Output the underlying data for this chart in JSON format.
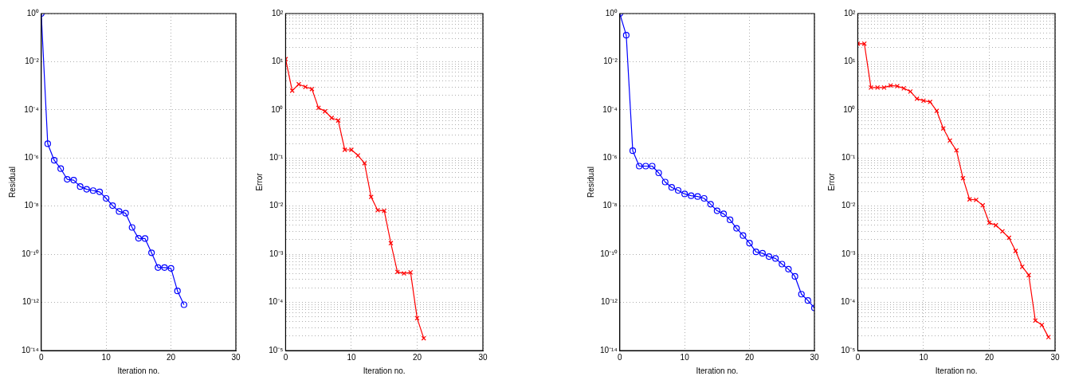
{
  "chart_data": [
    {
      "type": "line",
      "xlabel": "Iteration no.",
      "ylabel": "Residual",
      "marker": "circle",
      "log": "y",
      "grid": true,
      "xlim": [
        0,
        30
      ],
      "xticks": [
        0,
        10,
        20,
        30
      ],
      "ylim": [
        1e-14,
        1
      ],
      "yticks": [
        {
          "value": 1e-14,
          "label": "10⁻¹⁴"
        },
        {
          "value": 1e-12,
          "label": "10⁻¹²"
        },
        {
          "value": 1e-10,
          "label": "10⁻¹⁰"
        },
        {
          "value": 1e-08,
          "label": "10⁻⁸"
        },
        {
          "value": 1e-06,
          "label": "10⁻⁶"
        },
        {
          "value": 0.0001,
          "label": "10⁻⁴"
        },
        {
          "value": 0.01,
          "label": "10⁻²"
        },
        {
          "value": 1,
          "label": "10⁰"
        }
      ],
      "x": [
        0,
        1,
        2,
        3,
        4,
        5,
        6,
        7,
        8,
        9,
        10,
        11,
        12,
        13,
        14,
        15,
        16,
        17,
        18,
        19,
        20,
        21,
        22
      ],
      "series": [
        {
          "color": "#0000ff",
          "values": [
            1,
            3.9e-06,
            8e-07,
            3.6e-07,
            1.3e-07,
            1.2e-07,
            6.5e-08,
            5e-08,
            4.4e-08,
            3.9e-08,
            2.1e-08,
            1.05e-08,
            6e-09,
            5.1e-09,
            1.3e-09,
            4.6e-10,
            4.5e-10,
            1.15e-10,
            2.8e-11,
            2.8e-11,
            2.6e-11,
            3e-12,
            8e-13
          ]
        }
      ]
    },
    {
      "type": "line",
      "xlabel": "Iteration no.",
      "ylabel": "Error",
      "marker": "cross",
      "log": "y",
      "grid": true,
      "xlim": [
        0,
        30
      ],
      "xticks": [
        0,
        10,
        20,
        30
      ],
      "ylim": [
        1e-05,
        100
      ],
      "yticks": [
        {
          "value": 1e-05,
          "label": "10⁻⁵"
        },
        {
          "value": 2e-05,
          "label": null
        },
        {
          "value": 3e-05,
          "label": null
        },
        {
          "value": 4e-05,
          "label": null
        },
        {
          "value": 5e-05,
          "label": null
        },
        {
          "value": 6e-05,
          "label": null
        },
        {
          "value": 7e-05,
          "label": null
        },
        {
          "value": 8e-05,
          "label": null
        },
        {
          "value": 9e-05,
          "label": null
        },
        {
          "value": 0.0001,
          "label": "10⁻⁴"
        },
        {
          "value": 0.0002,
          "label": null
        },
        {
          "value": 0.0003,
          "label": null
        },
        {
          "value": 0.0004,
          "label": null
        },
        {
          "value": 0.0005,
          "label": null
        },
        {
          "value": 0.0006,
          "label": null
        },
        {
          "value": 0.0007,
          "label": null
        },
        {
          "value": 0.0008,
          "label": null
        },
        {
          "value": 0.0009,
          "label": null
        },
        {
          "value": 0.001,
          "label": "10⁻³"
        },
        {
          "value": 0.002,
          "label": null
        },
        {
          "value": 0.003,
          "label": null
        },
        {
          "value": 0.004,
          "label": null
        },
        {
          "value": 0.005,
          "label": null
        },
        {
          "value": 0.006,
          "label": null
        },
        {
          "value": 0.007,
          "label": null
        },
        {
          "value": 0.008,
          "label": null
        },
        {
          "value": 0.009,
          "label": null
        },
        {
          "value": 0.01,
          "label": "10⁻²"
        },
        {
          "value": 0.02,
          "label": null
        },
        {
          "value": 0.03,
          "label": null
        },
        {
          "value": 0.04,
          "label": null
        },
        {
          "value": 0.05,
          "label": null
        },
        {
          "value": 0.06,
          "label": null
        },
        {
          "value": 0.07,
          "label": null
        },
        {
          "value": 0.08,
          "label": null
        },
        {
          "value": 0.09,
          "label": null
        },
        {
          "value": 0.1,
          "label": "10⁻¹"
        },
        {
          "value": 0.2,
          "label": null
        },
        {
          "value": 0.3,
          "label": null
        },
        {
          "value": 0.4,
          "label": null
        },
        {
          "value": 0.5,
          "label": null
        },
        {
          "value": 0.6,
          "label": null
        },
        {
          "value": 0.7,
          "label": null
        },
        {
          "value": 0.8,
          "label": null
        },
        {
          "value": 0.9,
          "label": null
        },
        {
          "value": 1,
          "label": "10⁰"
        },
        {
          "value": 2,
          "label": null
        },
        {
          "value": 3,
          "label": null
        },
        {
          "value": 4,
          "label": null
        },
        {
          "value": 5,
          "label": null
        },
        {
          "value": 6,
          "label": null
        },
        {
          "value": 7,
          "label": null
        },
        {
          "value": 8,
          "label": null
        },
        {
          "value": 9,
          "label": null
        },
        {
          "value": 10,
          "label": "10¹"
        },
        {
          "value": 20,
          "label": null
        },
        {
          "value": 30,
          "label": null
        },
        {
          "value": 40,
          "label": null
        },
        {
          "value": 50,
          "label": null
        },
        {
          "value": 60,
          "label": null
        },
        {
          "value": 70,
          "label": null
        },
        {
          "value": 80,
          "label": null
        },
        {
          "value": 90,
          "label": null
        },
        {
          "value": 100,
          "label": "10²"
        }
      ],
      "x": [
        0,
        1,
        2,
        3,
        4,
        5,
        6,
        7,
        8,
        9,
        10,
        11,
        12,
        13,
        14,
        15,
        16,
        17,
        18,
        19,
        20,
        21
      ],
      "series": [
        {
          "color": "#ff0000",
          "values": [
            11.3,
            2.5,
            3.4,
            3.0,
            2.7,
            1.1,
            0.93,
            0.68,
            0.6,
            0.148,
            0.148,
            0.113,
            0.078,
            0.0155,
            0.0082,
            0.008,
            0.0017,
            0.00043,
            0.0004,
            0.00042,
            4.7e-05,
            1.8e-05
          ]
        }
      ]
    },
    {
      "type": "line",
      "xlabel": "Iteration no.",
      "ylabel": "Residual",
      "marker": "circle",
      "log": "y",
      "grid": true,
      "xlim": [
        0,
        30
      ],
      "xticks": [
        0,
        10,
        20,
        30
      ],
      "ylim": [
        1e-14,
        1
      ],
      "yticks": [
        {
          "value": 1e-14,
          "label": "10⁻¹⁴"
        },
        {
          "value": 1e-12,
          "label": "10⁻¹²"
        },
        {
          "value": 1e-10,
          "label": "10⁻¹⁰"
        },
        {
          "value": 1e-08,
          "label": "10⁻⁸"
        },
        {
          "value": 1e-06,
          "label": "10⁻⁶"
        },
        {
          "value": 0.0001,
          "label": "10⁻⁴"
        },
        {
          "value": 0.01,
          "label": "10⁻²"
        },
        {
          "value": 1,
          "label": "10⁰"
        }
      ],
      "x": [
        0,
        1,
        2,
        3,
        4,
        5,
        6,
        7,
        8,
        9,
        10,
        11,
        12,
        13,
        14,
        15,
        16,
        17,
        18,
        19,
        20,
        21,
        22,
        23,
        24,
        25,
        26,
        27,
        28,
        29,
        30
      ],
      "series": [
        {
          "color": "#0000ff",
          "values": [
            1,
            0.126,
            2e-06,
            4.6e-07,
            4.6e-07,
            4.6e-07,
            2.4e-07,
            1e-07,
            6e-08,
            4.5e-08,
            3.2e-08,
            2.7e-08,
            2.5e-08,
            2.1e-08,
            1.2e-08,
            6.4e-09,
            4.8e-09,
            2.7e-09,
            1.2e-09,
            6e-10,
            2.9e-10,
            1.25e-10,
            1.1e-10,
            8e-11,
            6.7e-11,
            3.9e-11,
            2.4e-11,
            1.2e-11,
            2.2e-12,
            1.2e-12,
            5.9e-13
          ]
        }
      ]
    },
    {
      "type": "line",
      "xlabel": "Iteration no.",
      "ylabel": "Error",
      "marker": "cross",
      "log": "y",
      "grid": true,
      "xlim": [
        0,
        30
      ],
      "xticks": [
        0,
        10,
        20,
        30
      ],
      "ylim": [
        1e-05,
        100
      ],
      "yticks": [
        {
          "value": 1e-05,
          "label": "10⁻⁵"
        },
        {
          "value": 2e-05,
          "label": null
        },
        {
          "value": 3e-05,
          "label": null
        },
        {
          "value": 4e-05,
          "label": null
        },
        {
          "value": 5e-05,
          "label": null
        },
        {
          "value": 6e-05,
          "label": null
        },
        {
          "value": 7e-05,
          "label": null
        },
        {
          "value": 8e-05,
          "label": null
        },
        {
          "value": 9e-05,
          "label": null
        },
        {
          "value": 0.0001,
          "label": "10⁻⁴"
        },
        {
          "value": 0.0002,
          "label": null
        },
        {
          "value": 0.0003,
          "label": null
        },
        {
          "value": 0.0004,
          "label": null
        },
        {
          "value": 0.0005,
          "label": null
        },
        {
          "value": 0.0006,
          "label": null
        },
        {
          "value": 0.0007,
          "label": null
        },
        {
          "value": 0.0008,
          "label": null
        },
        {
          "value": 0.0009,
          "label": null
        },
        {
          "value": 0.001,
          "label": "10⁻³"
        },
        {
          "value": 0.002,
          "label": null
        },
        {
          "value": 0.003,
          "label": null
        },
        {
          "value": 0.004,
          "label": null
        },
        {
          "value": 0.005,
          "label": null
        },
        {
          "value": 0.006,
          "label": null
        },
        {
          "value": 0.007,
          "label": null
        },
        {
          "value": 0.008,
          "label": null
        },
        {
          "value": 0.009,
          "label": null
        },
        {
          "value": 0.01,
          "label": "10⁻²"
        },
        {
          "value": 0.02,
          "label": null
        },
        {
          "value": 0.03,
          "label": null
        },
        {
          "value": 0.04,
          "label": null
        },
        {
          "value": 0.05,
          "label": null
        },
        {
          "value": 0.06,
          "label": null
        },
        {
          "value": 0.07,
          "label": null
        },
        {
          "value": 0.08,
          "label": null
        },
        {
          "value": 0.09,
          "label": null
        },
        {
          "value": 0.1,
          "label": "10⁻¹"
        },
        {
          "value": 0.2,
          "label": null
        },
        {
          "value": 0.3,
          "label": null
        },
        {
          "value": 0.4,
          "label": null
        },
        {
          "value": 0.5,
          "label": null
        },
        {
          "value": 0.6,
          "label": null
        },
        {
          "value": 0.7,
          "label": null
        },
        {
          "value": 0.8,
          "label": null
        },
        {
          "value": 0.9,
          "label": null
        },
        {
          "value": 1,
          "label": "10⁰"
        },
        {
          "value": 2,
          "label": null
        },
        {
          "value": 3,
          "label": null
        },
        {
          "value": 4,
          "label": null
        },
        {
          "value": 5,
          "label": null
        },
        {
          "value": 6,
          "label": null
        },
        {
          "value": 7,
          "label": null
        },
        {
          "value": 8,
          "label": null
        },
        {
          "value": 9,
          "label": null
        },
        {
          "value": 10,
          "label": "10¹"
        },
        {
          "value": 20,
          "label": null
        },
        {
          "value": 30,
          "label": null
        },
        {
          "value": 40,
          "label": null
        },
        {
          "value": 50,
          "label": null
        },
        {
          "value": 60,
          "label": null
        },
        {
          "value": 70,
          "label": null
        },
        {
          "value": 80,
          "label": null
        },
        {
          "value": 90,
          "label": null
        },
        {
          "value": 100,
          "label": "10²"
        }
      ],
      "x": [
        0,
        1,
        2,
        3,
        4,
        5,
        6,
        7,
        8,
        9,
        10,
        11,
        12,
        13,
        14,
        15,
        16,
        17,
        18,
        19,
        20,
        21,
        22,
        23,
        24,
        25,
        26,
        27,
        28,
        29
      ],
      "series": [
        {
          "color": "#ff0000",
          "values": [
            23.7,
            23.7,
            2.9,
            2.9,
            2.9,
            3.2,
            3.1,
            2.8,
            2.4,
            1.7,
            1.55,
            1.46,
            0.95,
            0.41,
            0.23,
            0.144,
            0.038,
            0.0138,
            0.0135,
            0.0104,
            0.0045,
            0.004,
            0.003,
            0.0022,
            0.00117,
            0.00055,
            0.00037,
            4.2e-05,
            3.4e-05,
            1.9e-05
          ]
        }
      ]
    }
  ]
}
